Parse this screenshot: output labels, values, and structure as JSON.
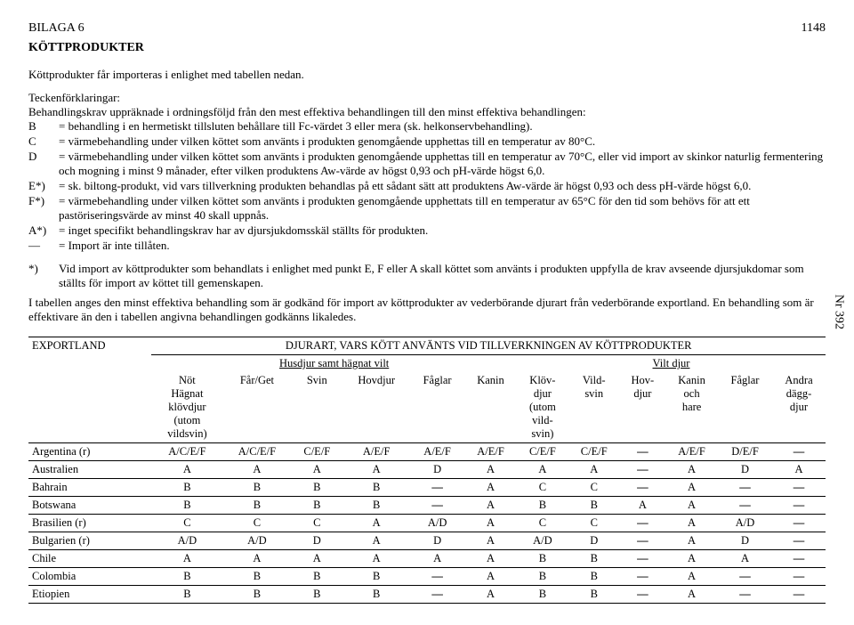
{
  "header": {
    "annex": "BILAGA 6",
    "title": "KÖTTPRODUKTER",
    "page_number": "1148",
    "side_ref": "Nr 392"
  },
  "intro": "Köttprodukter får importeras i enlighet med tabellen nedan.",
  "defs_intro1": "Teckenförklaringar:",
  "defs_intro2": "Behandlingskrav uppräknade i ordningsföljd från den mest effektiva behandlingen till den minst effektiva behandlingen:",
  "defs": [
    {
      "k": "B",
      "v": "= behandling i en hermetiskt tillsluten behållare till Fc-värdet 3 eller mera (sk. helkonservbehandling)."
    },
    {
      "k": "C",
      "v": "= värmebehandling under vilken köttet som använts i produkten genomgående upphettas till en temperatur av 80°C."
    },
    {
      "k": "D",
      "v": "= värmebehandling under vilken köttet som använts i produkten genomgående upphettas till en temperatur av 70°C, eller vid import av skinkor naturlig fermentering och mogning i minst 9 månader, efter vilken produktens Aw-värde av högst 0,93 och pH-värde högst 6,0."
    },
    {
      "k": "E*)",
      "v": "= sk. biltong-produkt, vid vars tillverkning produkten behandlas på ett sådant sätt att produktens Aw-värde är högst 0,93 och dess pH-värde högst 6,0."
    },
    {
      "k": "F*)",
      "v": "= värmebehandling under vilken köttet som använts i produkten genomgående upphettats till en temperatur av 65°C för den tid som behövs för att ett pastöriseringsvärde av minst 40 skall uppnås."
    },
    {
      "k": "A*)",
      "v": "= inget specifikt behandlingskrav har av djursjukdomsskäl ställts för produkten."
    },
    {
      "k": "—",
      "v": "= Import är inte tillåten."
    }
  ],
  "note": {
    "k": "*)",
    "v": "Vid import av köttprodukter som behandlats i enlighet med punkt E, F eller A skall köttet som använts i produkten uppfylla de krav avseende djursjukdomar som ställts för import av köttet till gemenskapen."
  },
  "para": "I tabellen anges den minst effektiva behandling som är godkänd för import av köttprodukter av vederbörande djurart från vederbörande exportland. En behandling som är effektivare än den i tabellen angivna behandlingen godkänns likaledes.",
  "table": {
    "exportland": "EXPORTLAND",
    "top_caption": "DJURART, VARS KÖTT ANVÄNTS VID TILLVERKNINGEN AV KÖTTPRODUKTER",
    "group_a": "Husdjur samt hägnat vilt",
    "group_b": "Vilt djur",
    "cols": [
      "Nöt Hägnat klövdjur (utom vildsvin)",
      "Får/Get",
      "Svin",
      "Hovdjur",
      "Fåglar",
      "Kanin",
      "Klöv- djur (utom vild- svin)",
      "Vild- svin",
      "Hov- djur",
      "Kanin och hare",
      "Fåglar",
      "Andra dägg- djur"
    ],
    "rows": [
      {
        "c": "Argentina (r)",
        "v": [
          "A/C/E/F",
          "A/C/E/F",
          "C/E/F",
          "A/E/F",
          "A/E/F",
          "A/E/F",
          "C/E/F",
          "C/E/F",
          "—",
          "A/E/F",
          "D/E/F",
          "—"
        ]
      },
      {
        "c": "Australien",
        "v": [
          "A",
          "A",
          "A",
          "A",
          "D",
          "A",
          "A",
          "A",
          "—",
          "A",
          "D",
          "A"
        ]
      },
      {
        "c": "Bahrain",
        "v": [
          "B",
          "B",
          "B",
          "B",
          "—",
          "A",
          "C",
          "C",
          "—",
          "A",
          "—",
          "—"
        ]
      },
      {
        "c": "Botswana",
        "v": [
          "B",
          "B",
          "B",
          "B",
          "—",
          "A",
          "B",
          "B",
          "A",
          "A",
          "—",
          "—"
        ]
      },
      {
        "c": "Brasilien (r)",
        "v": [
          "C",
          "C",
          "C",
          "A",
          "A/D",
          "A",
          "C",
          "C",
          "—",
          "A",
          "A/D",
          "—"
        ]
      },
      {
        "c": "Bulgarien (r)",
        "v": [
          "A/D",
          "A/D",
          "D",
          "A",
          "D",
          "A",
          "A/D",
          "D",
          "—",
          "A",
          "D",
          "—"
        ]
      },
      {
        "c": "Chile",
        "v": [
          "A",
          "A",
          "A",
          "A",
          "A",
          "A",
          "B",
          "B",
          "—",
          "A",
          "A",
          "—"
        ]
      },
      {
        "c": "Colombia",
        "v": [
          "B",
          "B",
          "B",
          "B",
          "—",
          "A",
          "B",
          "B",
          "—",
          "A",
          "—",
          "—"
        ]
      },
      {
        "c": "Etiopien",
        "v": [
          "B",
          "B",
          "B",
          "B",
          "—",
          "A",
          "B",
          "B",
          "—",
          "A",
          "—",
          "—"
        ]
      }
    ]
  }
}
